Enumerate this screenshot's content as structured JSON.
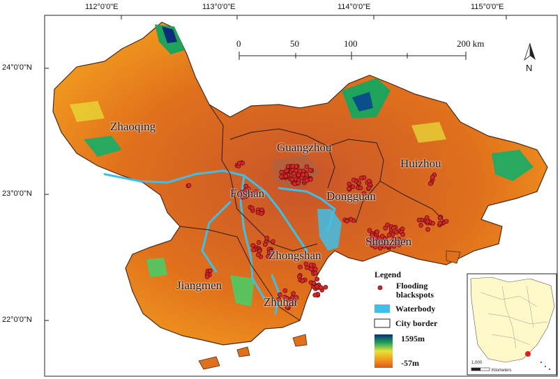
{
  "coordinates": {
    "longitudes": [
      "112°0'0\"E",
      "113°0'0\"E",
      "114°0'0\"E",
      "115°0'0\"E"
    ],
    "latitudes": [
      "24°0'0\"N",
      "23°0'0\"N",
      "22°0'0\"N"
    ]
  },
  "scalebar": {
    "labels": [
      "0",
      "50",
      "100",
      "200 km"
    ]
  },
  "north_arrow": {
    "label": "N"
  },
  "cities": [
    "Zhaoqing",
    "Guangzhou",
    "Huizhou",
    "Foshan",
    "Dongguan",
    "Shenzhen",
    "Zhongshan",
    "Jiangmen",
    "Zhuhai"
  ],
  "legend": {
    "title": "Legend",
    "blackspots": "Flooding blackspots",
    "waterbody": "Waterbody",
    "border": "City border",
    "elev_high": "1595m",
    "elev_low": "-57m"
  },
  "inset": {
    "scale_label": "1,000",
    "unit": "Kilometers"
  },
  "colors": {
    "terrain_low": "#d95a1c",
    "terrain_mid": "#f29a1e",
    "terrain_high": "#0a2f78",
    "water": "#3fbfe6",
    "blackspot": "#d62728"
  }
}
